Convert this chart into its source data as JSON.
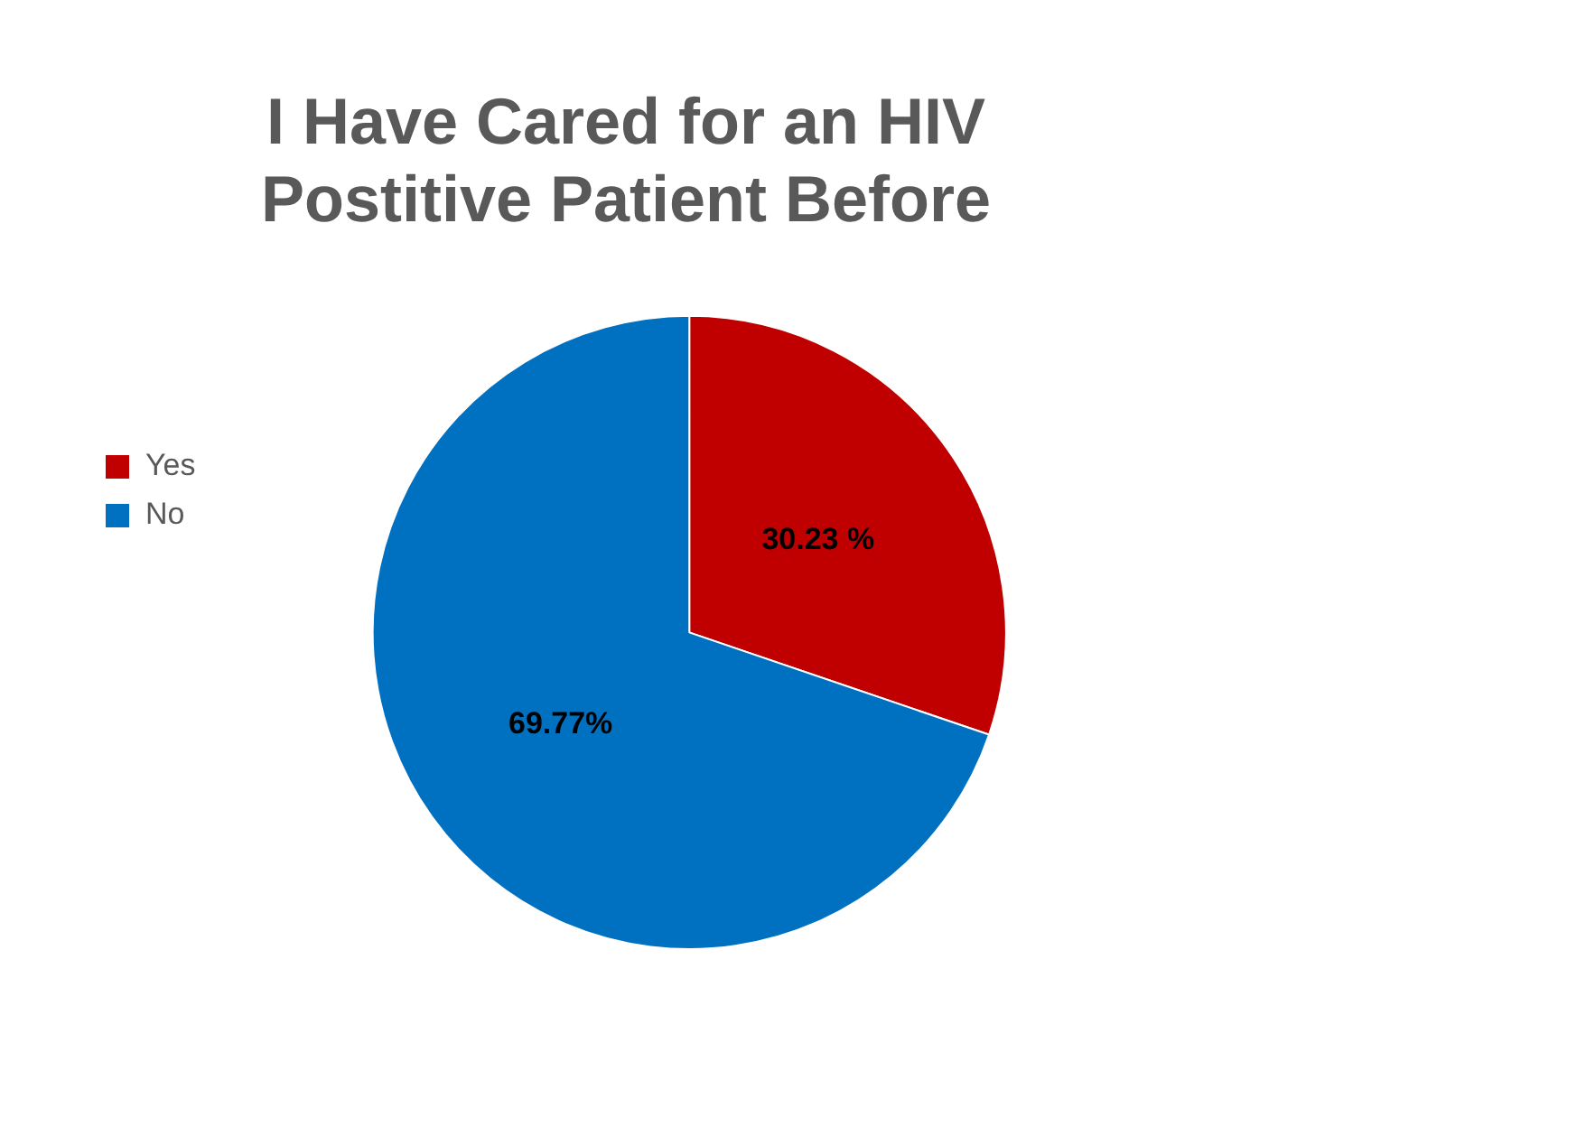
{
  "chart_data": {
    "type": "pie",
    "title": "I Have Cared for an HIV Postitive Patient Before",
    "categories": [
      "Yes",
      "No"
    ],
    "values": [
      30.23,
      69.77
    ],
    "colors": [
      "#c00000",
      "#0070c0"
    ],
    "value_labels": [
      "30.23 %",
      "69.77%"
    ],
    "legend": "left"
  }
}
